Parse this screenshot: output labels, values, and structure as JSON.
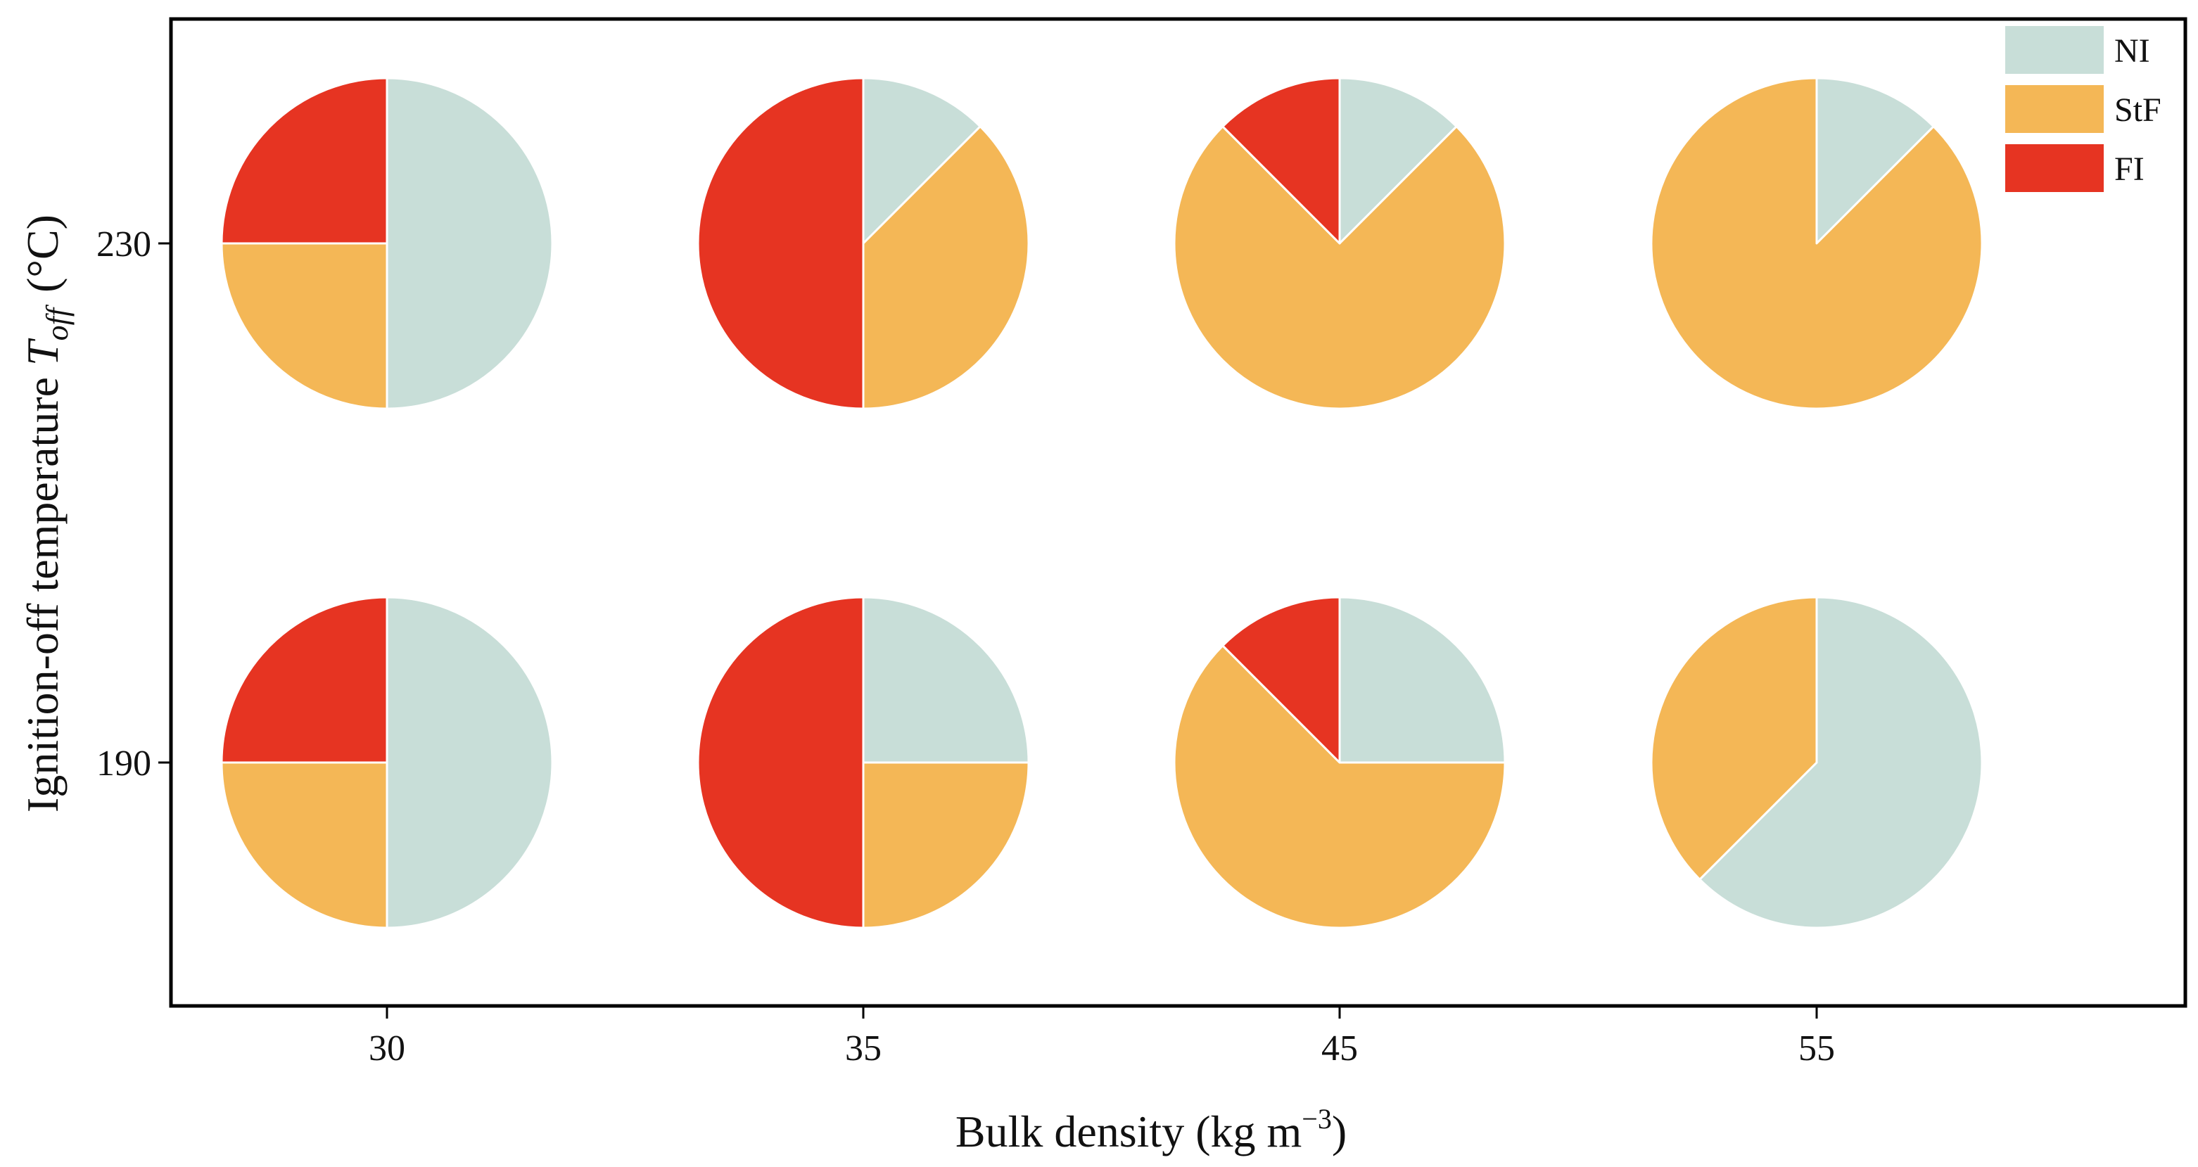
{
  "chart_data": {
    "type": "pie",
    "title": "",
    "xlabel": "Bulk density (kg m",
    "xlabel_sup": "−3",
    "xlabel_end": ")",
    "ylabel": "Ignition-off temperature ",
    "ylabel_symbol": "T",
    "ylabel_subscript": "off",
    "ylabel_unit": "(°C)",
    "x_ticks": [
      "30",
      "35",
      "45",
      "55"
    ],
    "y_ticks": [
      "230",
      "190"
    ],
    "legend": [
      {
        "label": "NI",
        "color": "#c8ded8"
      },
      {
        "label": "StF",
        "color": "#f4b756"
      },
      {
        "label": "FI",
        "color": "#e63422"
      }
    ],
    "categories": [
      "NI",
      "StF",
      "FI"
    ],
    "pies": [
      {
        "bulk_density": "30",
        "temperature": "230",
        "fractions": {
          "NI": 0.5,
          "StF": 0.25,
          "FI": 0.25
        }
      },
      {
        "bulk_density": "35",
        "temperature": "230",
        "fractions": {
          "NI": 0.125,
          "StF": 0.375,
          "FI": 0.5
        }
      },
      {
        "bulk_density": "45",
        "temperature": "230",
        "fractions": {
          "NI": 0.125,
          "StF": 0.75,
          "FI": 0.125
        }
      },
      {
        "bulk_density": "55",
        "temperature": "230",
        "fractions": {
          "NI": 0.125,
          "StF": 0.875,
          "FI": 0.0
        }
      },
      {
        "bulk_density": "30",
        "temperature": "190",
        "fractions": {
          "NI": 0.5,
          "StF": 0.25,
          "FI": 0.25
        }
      },
      {
        "bulk_density": "35",
        "temperature": "190",
        "fractions": {
          "NI": 0.25,
          "StF": 0.25,
          "FI": 0.5
        }
      },
      {
        "bulk_density": "45",
        "temperature": "190",
        "fractions": {
          "NI": 0.25,
          "StF": 0.625,
          "FI": 0.125
        }
      },
      {
        "bulk_density": "55",
        "temperature": "190",
        "fractions": {
          "NI": 0.625,
          "StF": 0.375,
          "FI": 0.0
        }
      }
    ]
  }
}
